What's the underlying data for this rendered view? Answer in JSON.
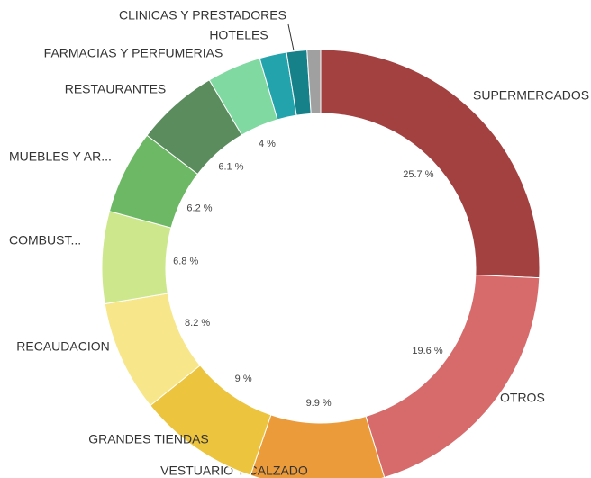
{
  "chart_data": {
    "type": "donut",
    "categories": [
      "SUPERMERCADOS",
      "OTROS",
      "VESTUARIO Y CALZADO",
      "GRANDES TIENDAS",
      "RECAUDACION",
      "COMBUST...",
      "MUEBLES Y AR...",
      "RESTAURANTES",
      "FARMACIAS Y PERFUMERIAS",
      "HOTELES",
      "CLINICAS Y PRESTADORES",
      null
    ],
    "values": [
      25.7,
      19.6,
      9.9,
      9,
      8.2,
      6.8,
      6.2,
      6.1,
      4,
      2,
      1.5,
      1
    ],
    "value_labels": [
      "25.7 %",
      "19.6 %",
      "9.9 %",
      "9 %",
      "8.2 %",
      "6.8 %",
      "6.2 %",
      "6.1 %",
      "4 %",
      null,
      null,
      null
    ],
    "colors": [
      "#a34040",
      "#d76b6b",
      "#ec9b3a",
      "#ecc43e",
      "#f7e68a",
      "#cde88c",
      "#6cb864",
      "#5a8c5d",
      "#7fd9a0",
      "#23a3ac",
      "#17818a",
      "#a0a0a0"
    ]
  }
}
